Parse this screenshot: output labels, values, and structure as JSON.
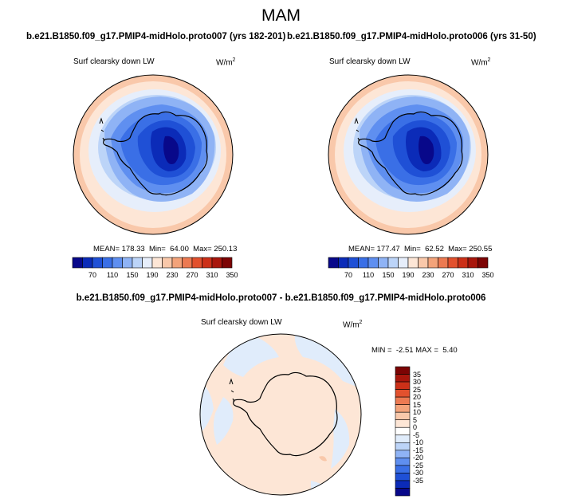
{
  "title": "MAM",
  "panels": [
    {
      "title": "b.e21.B1850.f09_g17.PMIP4-midHolo.proto007 (yrs 182-201)",
      "variable": "Surf clearsky down LW",
      "units_base": "W/m",
      "units_exp": "2",
      "stats": "MEAN= 178.33  Min=  64.00  Max= 250.13"
    },
    {
      "title": "b.e21.B1850.f09_g17.PMIP4-midHolo.proto006 (yrs 31-50)",
      "variable": "Surf clearsky down LW",
      "units_base": "W/m",
      "units_exp": "2",
      "stats": "MEAN= 177.47  Min=  62.52  Max= 250.55"
    }
  ],
  "diff_panel": {
    "title": "b.e21.B1850.f09_g17.PMIP4-midHolo.proto007 - b.e21.B1850.f09_g17.PMIP4-midHolo.proto006",
    "variable": "Surf clearsky down LW",
    "units_base": "W/m",
    "units_exp": "2",
    "stats": "MIN =  -2.51 MAX =  5.40"
  },
  "colorbar_main": {
    "colors": [
      "#08088a",
      "#0b2bb8",
      "#1f50d6",
      "#3a6fe6",
      "#5f8ff0",
      "#8fb3f5",
      "#bcd4f8",
      "#e6eefb",
      "#fde6d6",
      "#f9c8aa",
      "#f3a37a",
      "#ec7a52",
      "#e2512e",
      "#cc3018",
      "#a8160c",
      "#7c0404"
    ],
    "labels": [
      "70",
      "110",
      "150",
      "190",
      "230",
      "270",
      "310",
      "350"
    ]
  },
  "colorbar_diff": {
    "colors": [
      "#7c0404",
      "#a8160c",
      "#cc3018",
      "#e2512e",
      "#ec7a52",
      "#f3a37a",
      "#f9c8aa",
      "#fde6d6",
      "#ffffff",
      "#e0ecfb",
      "#bcd4f8",
      "#8fb3f5",
      "#5f8ff0",
      "#3a6fe6",
      "#1f50d6",
      "#0b2bb8",
      "#08088a"
    ],
    "labels": [
      "35",
      "30",
      "25",
      "20",
      "15",
      "10",
      "5",
      "0",
      "-5",
      "-10",
      "-15",
      "-20",
      "-25",
      "-30",
      "-35"
    ]
  }
}
